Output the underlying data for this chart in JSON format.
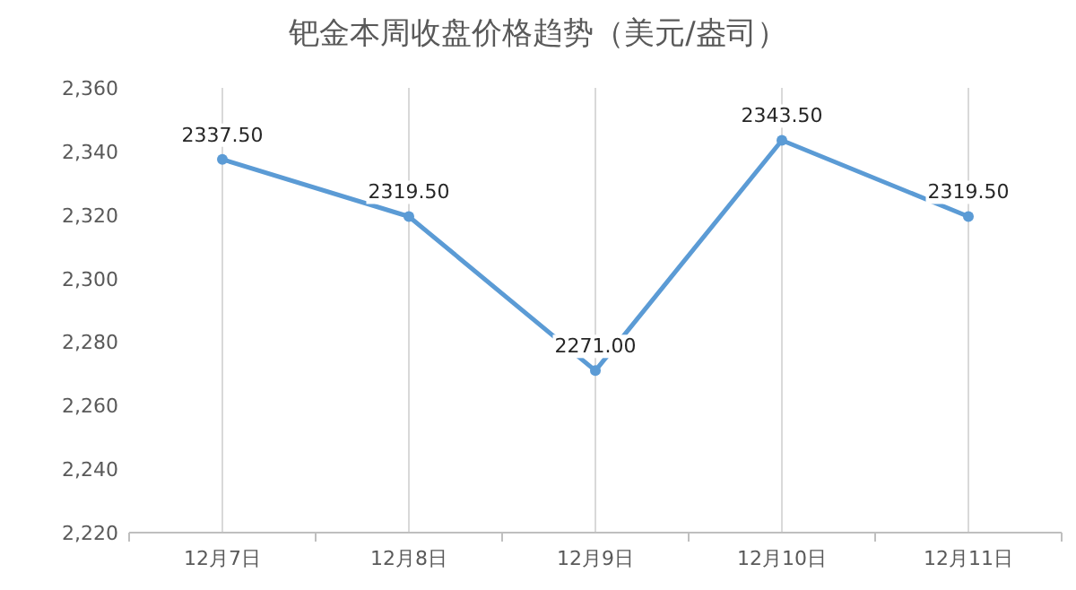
{
  "chart_data": {
    "type": "line",
    "title": "钯金本周收盘价格趋势（美元/盎司）",
    "categories": [
      "12月7日",
      "12月8日",
      "12月9日",
      "12月10日",
      "12月11日"
    ],
    "series": [
      {
        "color": "#5b9bd5",
        "values": [
          2337.5,
          2319.5,
          2271.0,
          2343.5,
          2319.5
        ],
        "value_labels": [
          "2337.50",
          "2319.50",
          "2271.00",
          "2343.50",
          "2319.50"
        ]
      }
    ],
    "ylim": [
      2220,
      2360
    ],
    "yticks": [
      {
        "value": 2220,
        "label": "2,220"
      },
      {
        "value": 2240,
        "label": "2,240"
      },
      {
        "value": 2260,
        "label": "2,260"
      },
      {
        "value": 2280,
        "label": "2,280"
      },
      {
        "value": 2300,
        "label": "2,300"
      },
      {
        "value": 2320,
        "label": "2,320"
      },
      {
        "value": 2340,
        "label": "2,340"
      },
      {
        "value": 2360,
        "label": "2,360"
      }
    ],
    "grid": "x",
    "marker": "circle",
    "line_style": "solid"
  }
}
